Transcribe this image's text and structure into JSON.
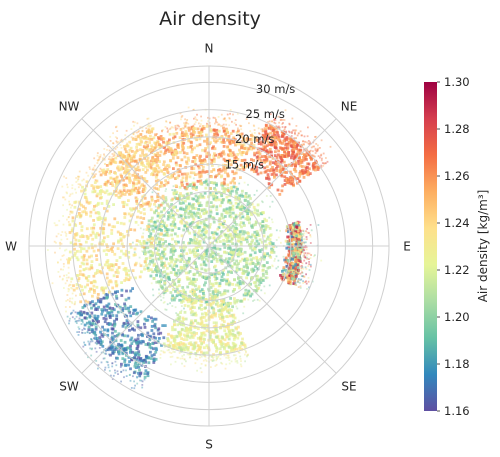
{
  "chart_data": {
    "type": "scatter",
    "projection": "polar",
    "title": "Air density",
    "angular_axis": {
      "labels": [
        "N",
        "NE",
        "E",
        "SE",
        "S",
        "SW",
        "W",
        "NW"
      ],
      "zero_location": "N",
      "direction": "clockwise"
    },
    "radial_axis": {
      "ticks": [
        15,
        20,
        25,
        30
      ],
      "tick_labels": [
        "15 m/s",
        "20 m/s",
        "25 m/s",
        "30 m/s"
      ],
      "range": [
        0,
        33
      ],
      "label_angle_deg": 22.5
    },
    "grid": true,
    "colorbar": {
      "label": "Air density [kg/m³]",
      "colormap": "Spectral_r",
      "range": [
        1.16,
        1.3
      ],
      "ticks": [
        1.16,
        1.18,
        1.2,
        1.22,
        1.24,
        1.26,
        1.28,
        1.3
      ],
      "tick_labels": [
        "1.16",
        "1.18",
        "1.20",
        "1.22",
        "1.24",
        "1.26",
        "1.28",
        "1.30"
      ],
      "position": "right"
    },
    "point_clusters": [
      {
        "region": "core",
        "direction_deg": [
          0,
          360
        ],
        "speed_ms": [
          0,
          12
        ],
        "density_range": [
          1.19,
          1.23
        ]
      },
      {
        "region": "north",
        "direction_deg": [
          335,
          25
        ],
        "speed_ms": [
          10,
          22
        ],
        "density_range": [
          1.23,
          1.27
        ]
      },
      {
        "region": "north-east",
        "direction_deg": [
          25,
          55
        ],
        "speed_ms": [
          15,
          25
        ],
        "density_range": [
          1.25,
          1.28
        ]
      },
      {
        "region": "east",
        "direction_deg": [
          75,
          115
        ],
        "speed_ms": [
          14,
          17
        ],
        "density_range": [
          1.17,
          1.3
        ]
      },
      {
        "region": "south-west",
        "direction_deg": [
          205,
          245
        ],
        "speed_ms": [
          15,
          27
        ],
        "density_range": [
          1.16,
          1.19
        ]
      },
      {
        "region": "west",
        "direction_deg": [
          245,
          300
        ],
        "speed_ms": [
          8,
          26
        ],
        "density_range": [
          1.22,
          1.25
        ]
      },
      {
        "region": "north-west",
        "direction_deg": [
          300,
          335
        ],
        "speed_ms": [
          10,
          24
        ],
        "density_range": [
          1.23,
          1.26
        ]
      },
      {
        "region": "south",
        "direction_deg": [
          160,
          205
        ],
        "speed_ms": [
          8,
          20
        ],
        "density_range": [
          1.21,
          1.24
        ]
      }
    ],
    "colors": {
      "grid": "#d0d0d0",
      "spectral_stops": [
        "#5e4fa2",
        "#3288bd",
        "#66c2a5",
        "#abdda4",
        "#e6f598",
        "#fee08b",
        "#fdae61",
        "#f46d43",
        "#d53e4f",
        "#9e0142"
      ]
    }
  }
}
